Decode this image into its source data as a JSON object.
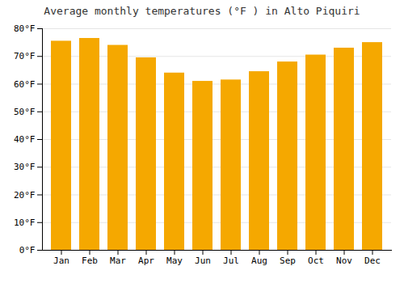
{
  "chart_data": {
    "type": "bar",
    "title": "Average monthly temperatures (°F ) in Alto Piquiri",
    "categories": [
      "Jan",
      "Feb",
      "Mar",
      "Apr",
      "May",
      "Jun",
      "Jul",
      "Aug",
      "Sep",
      "Oct",
      "Nov",
      "Dec"
    ],
    "values": [
      75.5,
      76.5,
      74.0,
      69.5,
      64.0,
      61.0,
      61.5,
      64.5,
      68.0,
      70.5,
      73.0,
      75.0
    ],
    "color": "#F5A800",
    "ylim": [
      0,
      80
    ],
    "yticks": [
      {
        "value": 0,
        "label": "0°F"
      },
      {
        "value": 10,
        "label": "10°F"
      },
      {
        "value": 20,
        "label": "20°F"
      },
      {
        "value": 30,
        "label": "30°F"
      },
      {
        "value": 40,
        "label": "40°F"
      },
      {
        "value": 50,
        "label": "50°F"
      },
      {
        "value": 60,
        "label": "60°F"
      },
      {
        "value": 70,
        "label": "70°F"
      },
      {
        "value": 80,
        "label": "80°F"
      }
    ],
    "grid": true
  }
}
